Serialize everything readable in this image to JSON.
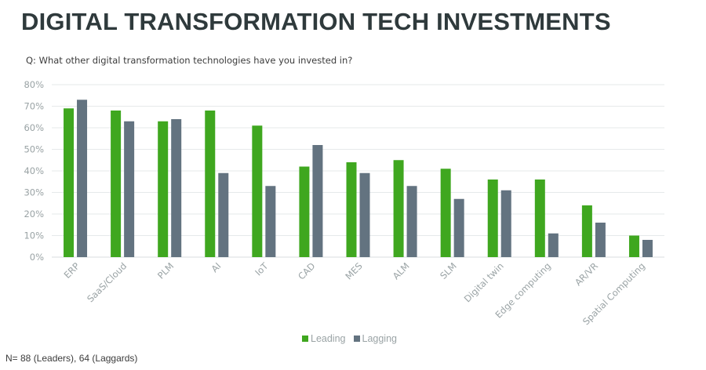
{
  "header": {
    "title": "DIGITAL TRANSFORMATION TECH INVESTMENTS",
    "question": "Q: What other digital transformation technologies have you invested in?"
  },
  "footnote": "N= 88 (Leaders), 64 (Laggards)",
  "colors": {
    "leading": "#3fa71f",
    "lagging": "#637380",
    "grid": "#e6e9ea",
    "tick_text": "#9aa3a5"
  },
  "legend": [
    {
      "name": "Leading",
      "color": "#3fa71f"
    },
    {
      "name": "Lagging",
      "color": "#637380"
    }
  ],
  "chart_data": {
    "type": "bar",
    "title": "DIGITAL TRANSFORMATION TECH INVESTMENTS",
    "subtitle": "Q: What other digital transformation technologies have you invested in?",
    "xlabel": "",
    "ylabel": "",
    "ylim": [
      0,
      80
    ],
    "yticks": [
      0,
      10,
      20,
      30,
      40,
      50,
      60,
      70,
      80
    ],
    "ytick_labels": [
      "0%",
      "10%",
      "20%",
      "30%",
      "40%",
      "50%",
      "60%",
      "70%",
      "80%"
    ],
    "grid": true,
    "legend_position": "bottom-center",
    "categories": [
      "ERP",
      "SaaS/Cloud",
      "PLM",
      "AI",
      "IoT",
      "CAD",
      "MES",
      "ALM",
      "SLM",
      "Digital twin",
      "Edge computing",
      "AR/VR",
      "Spatial Computing"
    ],
    "series": [
      {
        "name": "Leading",
        "values": [
          69,
          68,
          63,
          68,
          61,
          42,
          44,
          45,
          41,
          36,
          36,
          24,
          10
        ]
      },
      {
        "name": "Lagging",
        "values": [
          73,
          63,
          64,
          39,
          33,
          52,
          39,
          33,
          27,
          31,
          11,
          16,
          8
        ]
      }
    ]
  }
}
